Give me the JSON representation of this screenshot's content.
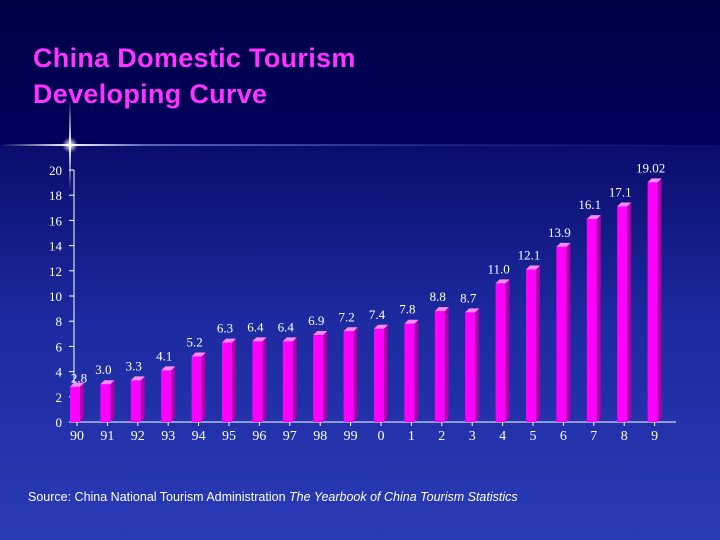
{
  "title": {
    "line1": "China Domestic Tourism",
    "line2": "Developing Curve"
  },
  "colors": {
    "title": "#ff33ff",
    "bar_front": "#ff00ff",
    "bar_side": "#aa00aa",
    "bar_top": "#ff88ff",
    "axis_text": "#ffffff"
  },
  "chart_data": {
    "type": "bar",
    "title": "China Domestic Tourism Developing Curve",
    "xlabel": "",
    "ylabel": "",
    "ylim": [
      0,
      20
    ],
    "yticks": [
      "0",
      "2",
      "4",
      "6",
      "8",
      "10",
      "12",
      "14",
      "16",
      "18",
      "20"
    ],
    "categories": [
      "90",
      "91",
      "92",
      "93",
      "94",
      "95",
      "96",
      "97",
      "98",
      "99",
      "0",
      "1",
      "2",
      "3",
      "4",
      "5",
      "6",
      "7",
      "8",
      "9"
    ],
    "values": [
      2.8,
      3.0,
      3.3,
      4.1,
      5.2,
      6.3,
      6.4,
      6.4,
      6.9,
      7.2,
      7.4,
      7.8,
      8.8,
      8.7,
      11.0,
      12.1,
      13.9,
      16.1,
      17.1,
      19.02
    ],
    "labels": [
      "2.8",
      "3.0",
      "3.3",
      "4.1",
      "5.2",
      "6.3",
      "6.4",
      "6.4",
      "6.9",
      "7.2",
      "7.4",
      "7.8",
      "8.8",
      "8.7",
      "11.0",
      "12.1",
      "13.9",
      "16.1",
      "17.1",
      "19.02"
    ],
    "grid": false,
    "legend": "none"
  },
  "source": {
    "prefix": "Source: China National Tourism Administration",
    "publication": "The Yearbook of China Tourism Statistics"
  }
}
